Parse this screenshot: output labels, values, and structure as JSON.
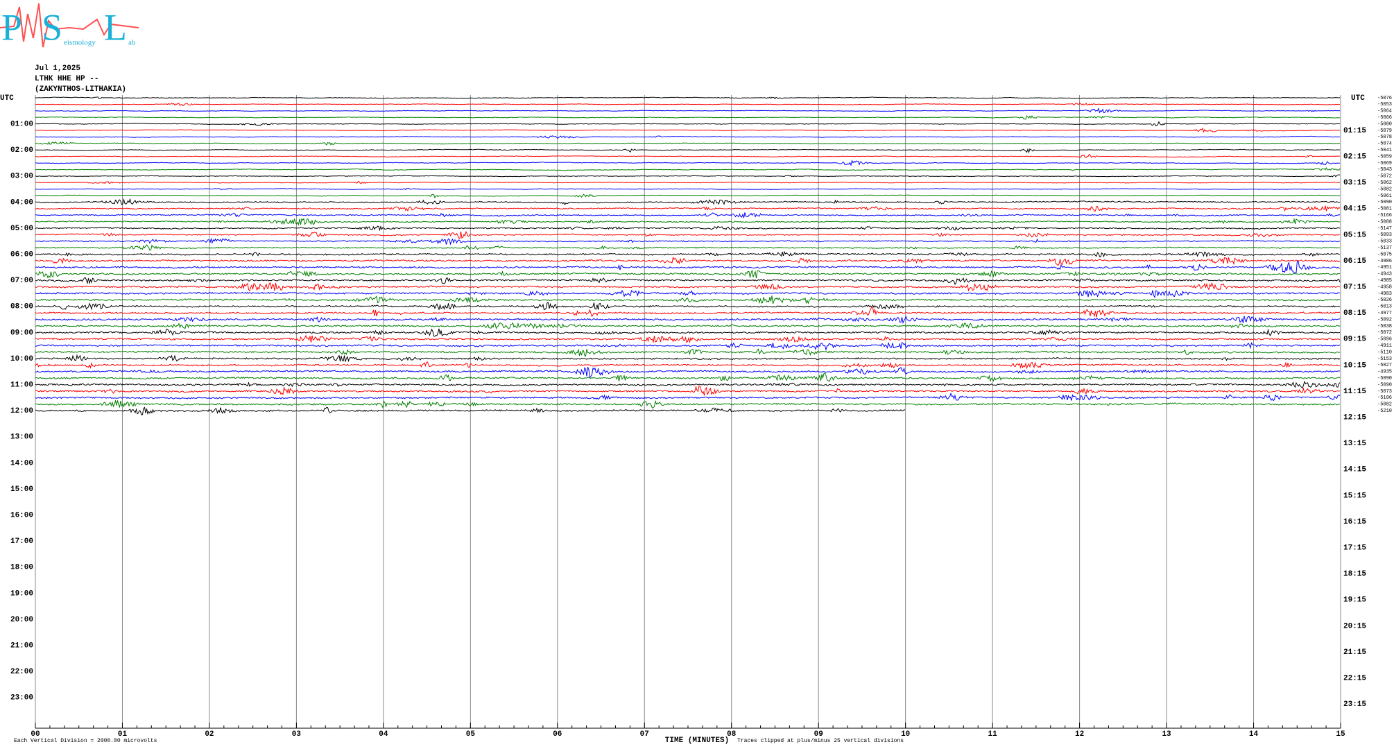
{
  "chart_data": {
    "type": "helicorder",
    "logo": {
      "letters": [
        "P",
        "S",
        "L"
      ],
      "words": [
        "eismology",
        "ab"
      ]
    },
    "header": [
      "Jul 1,2025",
      "LTHK HHE HP --",
      "(ZAKYNTHOS-LITHAKIA)"
    ],
    "left_labels": [
      "UTC",
      "01:00",
      "02:00",
      "03:00",
      "04:00",
      "05:00",
      "06:00",
      "07:00",
      "08:00",
      "09:00",
      "10:00",
      "11:00",
      "12:00",
      "13:00",
      "14:00",
      "15:00",
      "16:00",
      "17:00",
      "18:00",
      "19:00",
      "20:00",
      "21:00",
      "22:00",
      "23:00"
    ],
    "right_labels": [
      "UTC",
      "01:15",
      "02:15",
      "03:15",
      "04:15",
      "05:15",
      "06:15",
      "07:15",
      "08:15",
      "09:15",
      "10:15",
      "11:15",
      "12:15",
      "13:15",
      "14:15",
      "15:15",
      "16:15",
      "17:15",
      "18:15",
      "19:15",
      "20:15",
      "21:15",
      "22:15",
      "23:15"
    ],
    "trace_colors": [
      "#000000",
      "#ff0000",
      "#0000ff",
      "#008000"
    ],
    "offsets": [
      -5076,
      -5053,
      -5064,
      -5066,
      -5080,
      -5079,
      -5078,
      -5074,
      -5041,
      -5059,
      -5069,
      -5043,
      -5072,
      -5062,
      -5082,
      -5061,
      -5090,
      -5081,
      -5166,
      -5088,
      -5147,
      -5093,
      -5033,
      -5137,
      -5075,
      -4986,
      -4951,
      -4943,
      -4985,
      -4958,
      -4983,
      -5026,
      -5013,
      -4977,
      -5092,
      -5038,
      -5072,
      -5096,
      -4911,
      -5110,
      -5153,
      -5027,
      -4935,
      -5090,
      -5090,
      -5073,
      -5106,
      -5082,
      -5210
    ],
    "xlim": [
      0,
      15
    ],
    "xticks": [
      {
        "value": 0,
        "label": "00"
      },
      {
        "value": 1,
        "label": "01"
      },
      {
        "value": 2,
        "label": "02"
      },
      {
        "value": 3,
        "label": "03"
      },
      {
        "value": 4,
        "label": "04"
      },
      {
        "value": 5,
        "label": "05"
      },
      {
        "value": 6,
        "label": "06"
      },
      {
        "value": 7,
        "label": "07"
      },
      {
        "value": 8,
        "label": "08"
      },
      {
        "value": 9,
        "label": "09"
      },
      10,
      11,
      12,
      13,
      14,
      15
    ],
    "last_trace_end": 10,
    "x_label": "TIME (MINUTES)",
    "footer_left": "Each Vertical Division = 2000.00 microvolts",
    "footer_right": "Traces clipped at plus/minus 25 vertical divisions"
  }
}
